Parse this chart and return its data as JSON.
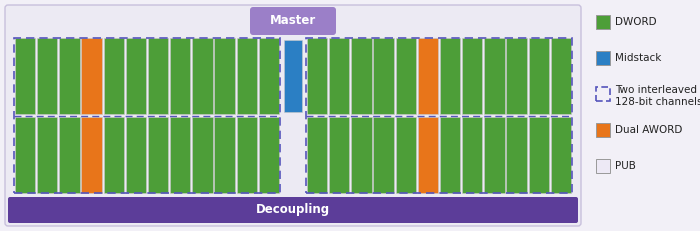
{
  "fig_width": 7.0,
  "fig_height": 2.31,
  "dpi": 100,
  "bg_color": "#f2f0f7",
  "outer_bg": "#eceaf3",
  "outer_edge": "#c8c0dc",
  "decoupling_color": "#5c3d99",
  "decoupling_text": "Decoupling",
  "decoupling_text_color": "#ffffff",
  "master_color": "#9b7fc8",
  "master_text": "Master",
  "master_text_color": "#ffffff",
  "channel_edge_color": "#5555bb",
  "green_color": "#4d9e38",
  "orange_color": "#e8751a",
  "blue_color": "#2b7fc4",
  "pub_color": "#ede9f5",
  "block_edge_color": "#c8c8c8",
  "left_col_types": [
    "G",
    "G",
    "G",
    "O",
    "G",
    "G",
    "G",
    "G",
    "G",
    "G",
    "G",
    "G"
  ],
  "right_col_types": [
    "G",
    "G",
    "G",
    "G",
    "G",
    "O",
    "G",
    "G",
    "G",
    "G",
    "G",
    "G"
  ],
  "legend_items": [
    {
      "label": "DWORD",
      "color": "#4d9e38",
      "type": "rect"
    },
    {
      "label": "Midstack",
      "color": "#2b7fc4",
      "type": "rect"
    },
    {
      "label": "Two interleaved\n128-bit channels",
      "color": "#5555bb",
      "type": "dashed_rect"
    },
    {
      "label": "Dual AWORD",
      "color": "#e8751a",
      "type": "rect"
    },
    {
      "label": "PUB",
      "color": "#ede9f5",
      "type": "rect"
    }
  ]
}
